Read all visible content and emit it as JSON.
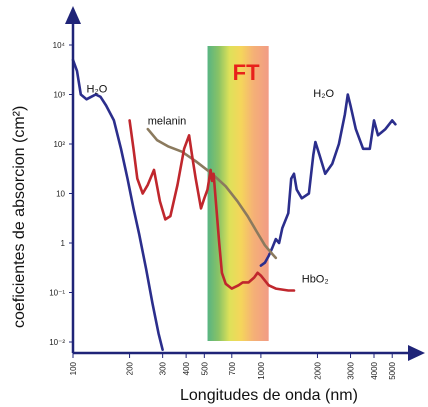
{
  "chart_data": {
    "type": "line",
    "xlabel": "Longitudes de onda (nm)",
    "ylabel": "coeficientes de absorcion (cm²)",
    "x_scale": "log",
    "y_scale": "log",
    "xlim": [
      100,
      5500
    ],
    "ylim": [
      0.01,
      10000
    ],
    "x_ticks": [
      {
        "value": 100,
        "label": "100"
      },
      {
        "value": 200,
        "label": "200"
      },
      {
        "value": 300,
        "label": "300"
      },
      {
        "value": 400,
        "label": "400"
      },
      {
        "value": 500,
        "label": "500"
      },
      {
        "value": 700,
        "label": "700"
      },
      {
        "value": 1000,
        "label": "1000"
      },
      {
        "value": 2000,
        "label": "2000"
      },
      {
        "value": 3000,
        "label": "3000"
      },
      {
        "value": 4000,
        "label": "4000"
      },
      {
        "value": 5000,
        "label": "5000"
      }
    ],
    "y_ticks": [
      {
        "value": 10000,
        "label": "10⁴"
      },
      {
        "value": 1000,
        "label": "10³"
      },
      {
        "value": 100,
        "label": "10²"
      },
      {
        "value": 10,
        "label": "10"
      },
      {
        "value": 1,
        "label": "1"
      },
      {
        "value": 0.1,
        "label": "10⁻¹"
      },
      {
        "value": 0.01,
        "label": "10⁻²"
      }
    ],
    "band": {
      "label": "FT",
      "x_range": [
        520,
        1100
      ]
    },
    "series": [
      {
        "name": "H₂O",
        "color": "#2b2e8c",
        "points": [
          [
            100,
            5000
          ],
          [
            105,
            3000
          ],
          [
            110,
            1000
          ],
          [
            118,
            800
          ],
          [
            125,
            900
          ],
          [
            132,
            1000
          ],
          [
            140,
            900
          ],
          [
            150,
            600
          ],
          [
            165,
            300
          ],
          [
            180,
            80
          ],
          [
            195,
            20
          ],
          [
            210,
            5
          ],
          [
            225,
            1.5
          ],
          [
            245,
            0.3
          ],
          [
            265,
            0.06
          ],
          [
            285,
            0.015
          ],
          [
            300,
            0.007
          ]
        ]
      },
      {
        "name": "H₂O",
        "color": "#2b2e8c",
        "points": [
          [
            1000,
            0.35
          ],
          [
            1050,
            0.4
          ],
          [
            1100,
            0.55
          ],
          [
            1150,
            0.8
          ],
          [
            1200,
            1.2
          ],
          [
            1250,
            1.0
          ],
          [
            1300,
            2.0
          ],
          [
            1400,
            4.0
          ],
          [
            1450,
            20
          ],
          [
            1500,
            25
          ],
          [
            1550,
            12
          ],
          [
            1650,
            8
          ],
          [
            1800,
            10
          ],
          [
            1900,
            60
          ],
          [
            1950,
            110
          ],
          [
            2050,
            60
          ],
          [
            2200,
            25
          ],
          [
            2400,
            40
          ],
          [
            2600,
            100
          ],
          [
            2800,
            400
          ],
          [
            2900,
            1000
          ],
          [
            3000,
            600
          ],
          [
            3200,
            200
          ],
          [
            3500,
            80
          ],
          [
            3800,
            80
          ],
          [
            4000,
            300
          ],
          [
            4200,
            150
          ],
          [
            4600,
            200
          ],
          [
            5000,
            300
          ],
          [
            5200,
            250
          ]
        ]
      },
      {
        "name": "melanin",
        "color": "#8b7a5e",
        "points": [
          [
            250,
            200
          ],
          [
            280,
            120
          ],
          [
            320,
            90
          ],
          [
            380,
            70
          ],
          [
            450,
            45
          ],
          [
            550,
            25
          ],
          [
            650,
            14
          ],
          [
            750,
            7
          ],
          [
            850,
            3.5
          ],
          [
            950,
            1.7
          ],
          [
            1050,
            0.9
          ],
          [
            1150,
            0.6
          ],
          [
            1200,
            0.5
          ]
        ]
      },
      {
        "name": "HbO₂",
        "color": "#c0272d",
        "points": [
          [
            200,
            300
          ],
          [
            210,
            80
          ],
          [
            220,
            20
          ],
          [
            235,
            10
          ],
          [
            250,
            15
          ],
          [
            270,
            30
          ],
          [
            290,
            7
          ],
          [
            310,
            3
          ],
          [
            330,
            3.5
          ],
          [
            360,
            15
          ],
          [
            390,
            80
          ],
          [
            415,
            150
          ],
          [
            430,
            60
          ],
          [
            450,
            20
          ],
          [
            480,
            5
          ],
          [
            500,
            8
          ],
          [
            520,
            12
          ],
          [
            540,
            30
          ],
          [
            550,
            18
          ],
          [
            560,
            25
          ],
          [
            580,
            5
          ],
          [
            600,
            1
          ],
          [
            620,
            0.25
          ],
          [
            650,
            0.15
          ],
          [
            700,
            0.12
          ],
          [
            760,
            0.14
          ],
          [
            800,
            0.16
          ],
          [
            860,
            0.16
          ],
          [
            920,
            0.2
          ],
          [
            960,
            0.25
          ],
          [
            1000,
            0.22
          ],
          [
            1100,
            0.14
          ],
          [
            1200,
            0.12
          ],
          [
            1400,
            0.11
          ],
          [
            1500,
            0.11
          ]
        ]
      }
    ],
    "series_labels": [
      {
        "text": "H₂O",
        "series": 0,
        "anchor": [
          118,
          1100
        ]
      },
      {
        "text": "H₂O",
        "series": 1,
        "anchor": [
          1900,
          900
        ]
      },
      {
        "text": "melanin",
        "series": 2,
        "anchor": [
          250,
          250
        ]
      },
      {
        "text": "HbO₂",
        "series": 3,
        "anchor": [
          1650,
          0.16
        ]
      }
    ]
  }
}
